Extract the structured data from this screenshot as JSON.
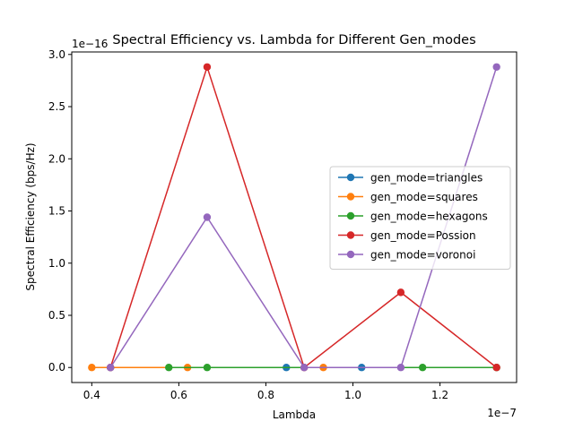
{
  "chart_data": {
    "type": "line",
    "title": "Spectral Efficiency vs. Lambda for Different Gen_modes",
    "xlabel": "Lambda",
    "ylabel": "Spectral Efficiency (bps/Hz)",
    "x_offset_text": "1e−7",
    "y_offset_text": "1e−16",
    "x_scale": 1e-07,
    "y_scale": 1e-16,
    "xlim": [
      0.354,
      1.376
    ],
    "ylim": [
      -0.144,
      3.024
    ],
    "x_ticks": [
      0.4,
      0.6,
      0.8,
      1.0,
      1.2
    ],
    "x_tick_labels": [
      "0.4",
      "0.6",
      "0.8",
      "1.0",
      "1.2"
    ],
    "y_ticks": [
      0.0,
      0.5,
      1.0,
      1.5,
      2.0,
      2.5,
      3.0
    ],
    "y_tick_labels": [
      "0.0",
      "0.5",
      "1.0",
      "1.5",
      "2.0",
      "2.5",
      "3.0"
    ],
    "grid": false,
    "legend_position": "center-right",
    "series": [
      {
        "name": "gen_mode=triangles",
        "color": "#1f77b4",
        "x": [
          0.443,
          0.847,
          1.02
        ],
        "y": [
          0,
          0,
          0
        ]
      },
      {
        "name": "gen_mode=squares",
        "color": "#ff7f0e",
        "x": [
          0.4,
          0.62,
          0.932
        ],
        "y": [
          0,
          0,
          0
        ]
      },
      {
        "name": "gen_mode=hexagons",
        "color": "#2ca02c",
        "x": [
          0.577,
          0.665,
          1.16,
          1.33
        ],
        "y": [
          0,
          0,
          0,
          0
        ]
      },
      {
        "name": "gen_mode=Possion",
        "color": "#d62728",
        "x": [
          0.443,
          0.665,
          0.888,
          1.11,
          1.33
        ],
        "y": [
          0,
          2.88,
          0,
          0.72,
          0
        ]
      },
      {
        "name": "gen_mode=voronoi",
        "color": "#9467bd",
        "x": [
          0.443,
          0.665,
          0.888,
          1.11,
          1.33
        ],
        "y": [
          0,
          1.44,
          0,
          0,
          2.88
        ]
      }
    ]
  }
}
